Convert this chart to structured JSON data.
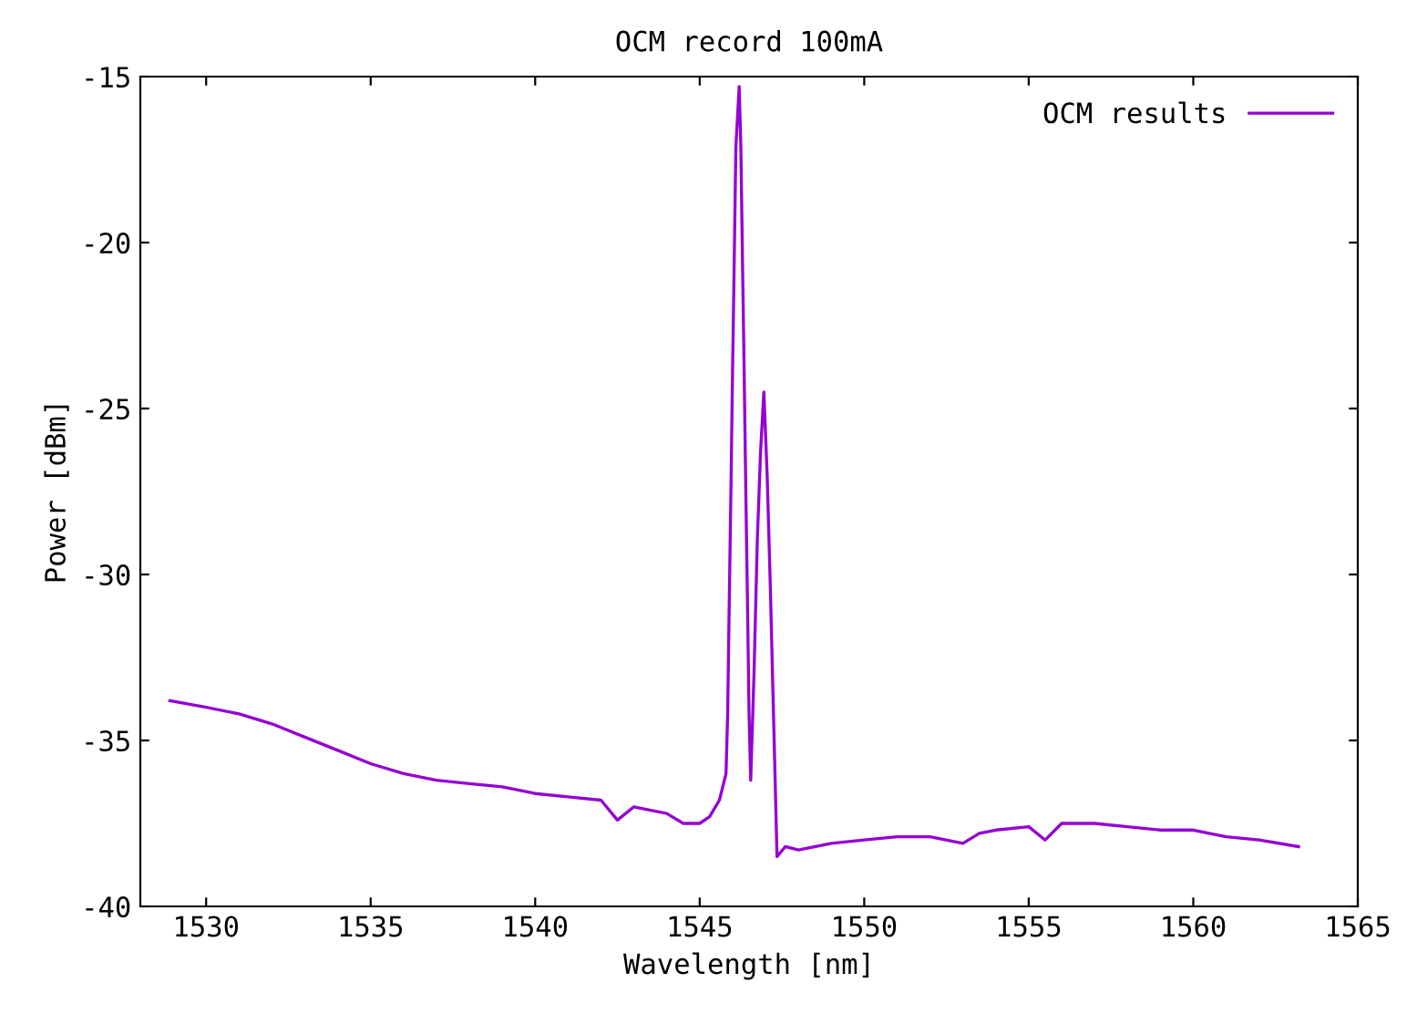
{
  "chart_data": {
    "type": "line",
    "title": "OCM record 100mA",
    "xlabel": "Wavelength [nm]",
    "ylabel": "Power [dBm]",
    "xlim": [
      1528,
      1565
    ],
    "xticks": [
      1530,
      1535,
      1540,
      1545,
      1550,
      1555,
      1560,
      1565
    ],
    "ylim": [
      -40,
      -15
    ],
    "yticks": [
      -40,
      -35,
      -30,
      -25,
      -20,
      -15
    ],
    "grid": false,
    "legend": "top right",
    "marker": "none",
    "line_style": "solid",
    "series": [
      {
        "name": "OCM results",
        "color": "#9400d3",
        "x": [
          1528.9,
          1530,
          1531,
          1532,
          1533,
          1534,
          1535,
          1536,
          1537,
          1538,
          1539,
          1540,
          1541,
          1542,
          1542.5,
          1543,
          1544,
          1544.5,
          1545,
          1545.3,
          1545.6,
          1545.8,
          1545.85,
          1545.9,
          1545.95,
          1546.0,
          1546.05,
          1546.1,
          1546.2,
          1546.25,
          1546.3,
          1546.35,
          1546.4,
          1546.45,
          1546.5,
          1546.55,
          1546.65,
          1546.75,
          1546.85,
          1546.95,
          1547.05,
          1547.15,
          1547.25,
          1547.35,
          1547.6,
          1548,
          1549,
          1550,
          1551,
          1552,
          1553,
          1553.5,
          1554,
          1555,
          1555.5,
          1556,
          1557,
          1558,
          1559,
          1560,
          1561,
          1562,
          1563.2
        ],
        "values": [
          -33.8,
          -34.0,
          -34.2,
          -34.5,
          -34.9,
          -35.3,
          -35.7,
          -36.0,
          -36.2,
          -36.3,
          -36.4,
          -36.6,
          -36.7,
          -36.8,
          -37.4,
          -37.0,
          -37.2,
          -37.5,
          -37.5,
          -37.3,
          -36.8,
          -36.0,
          -34.2,
          -30.7,
          -27.4,
          -23.8,
          -20.5,
          -17.1,
          -15.3,
          -17.1,
          -20.5,
          -23.8,
          -27.4,
          -30.7,
          -34.2,
          -36.2,
          -33.0,
          -29.0,
          -26.3,
          -24.5,
          -27.0,
          -30.5,
          -34.5,
          -38.5,
          -38.2,
          -38.3,
          -38.1,
          -38.0,
          -37.9,
          -37.9,
          -38.1,
          -37.8,
          -37.7,
          -37.6,
          -38.0,
          -37.5,
          -37.5,
          -37.6,
          -37.7,
          -37.7,
          -37.9,
          -38.0,
          -38.2
        ]
      }
    ]
  }
}
